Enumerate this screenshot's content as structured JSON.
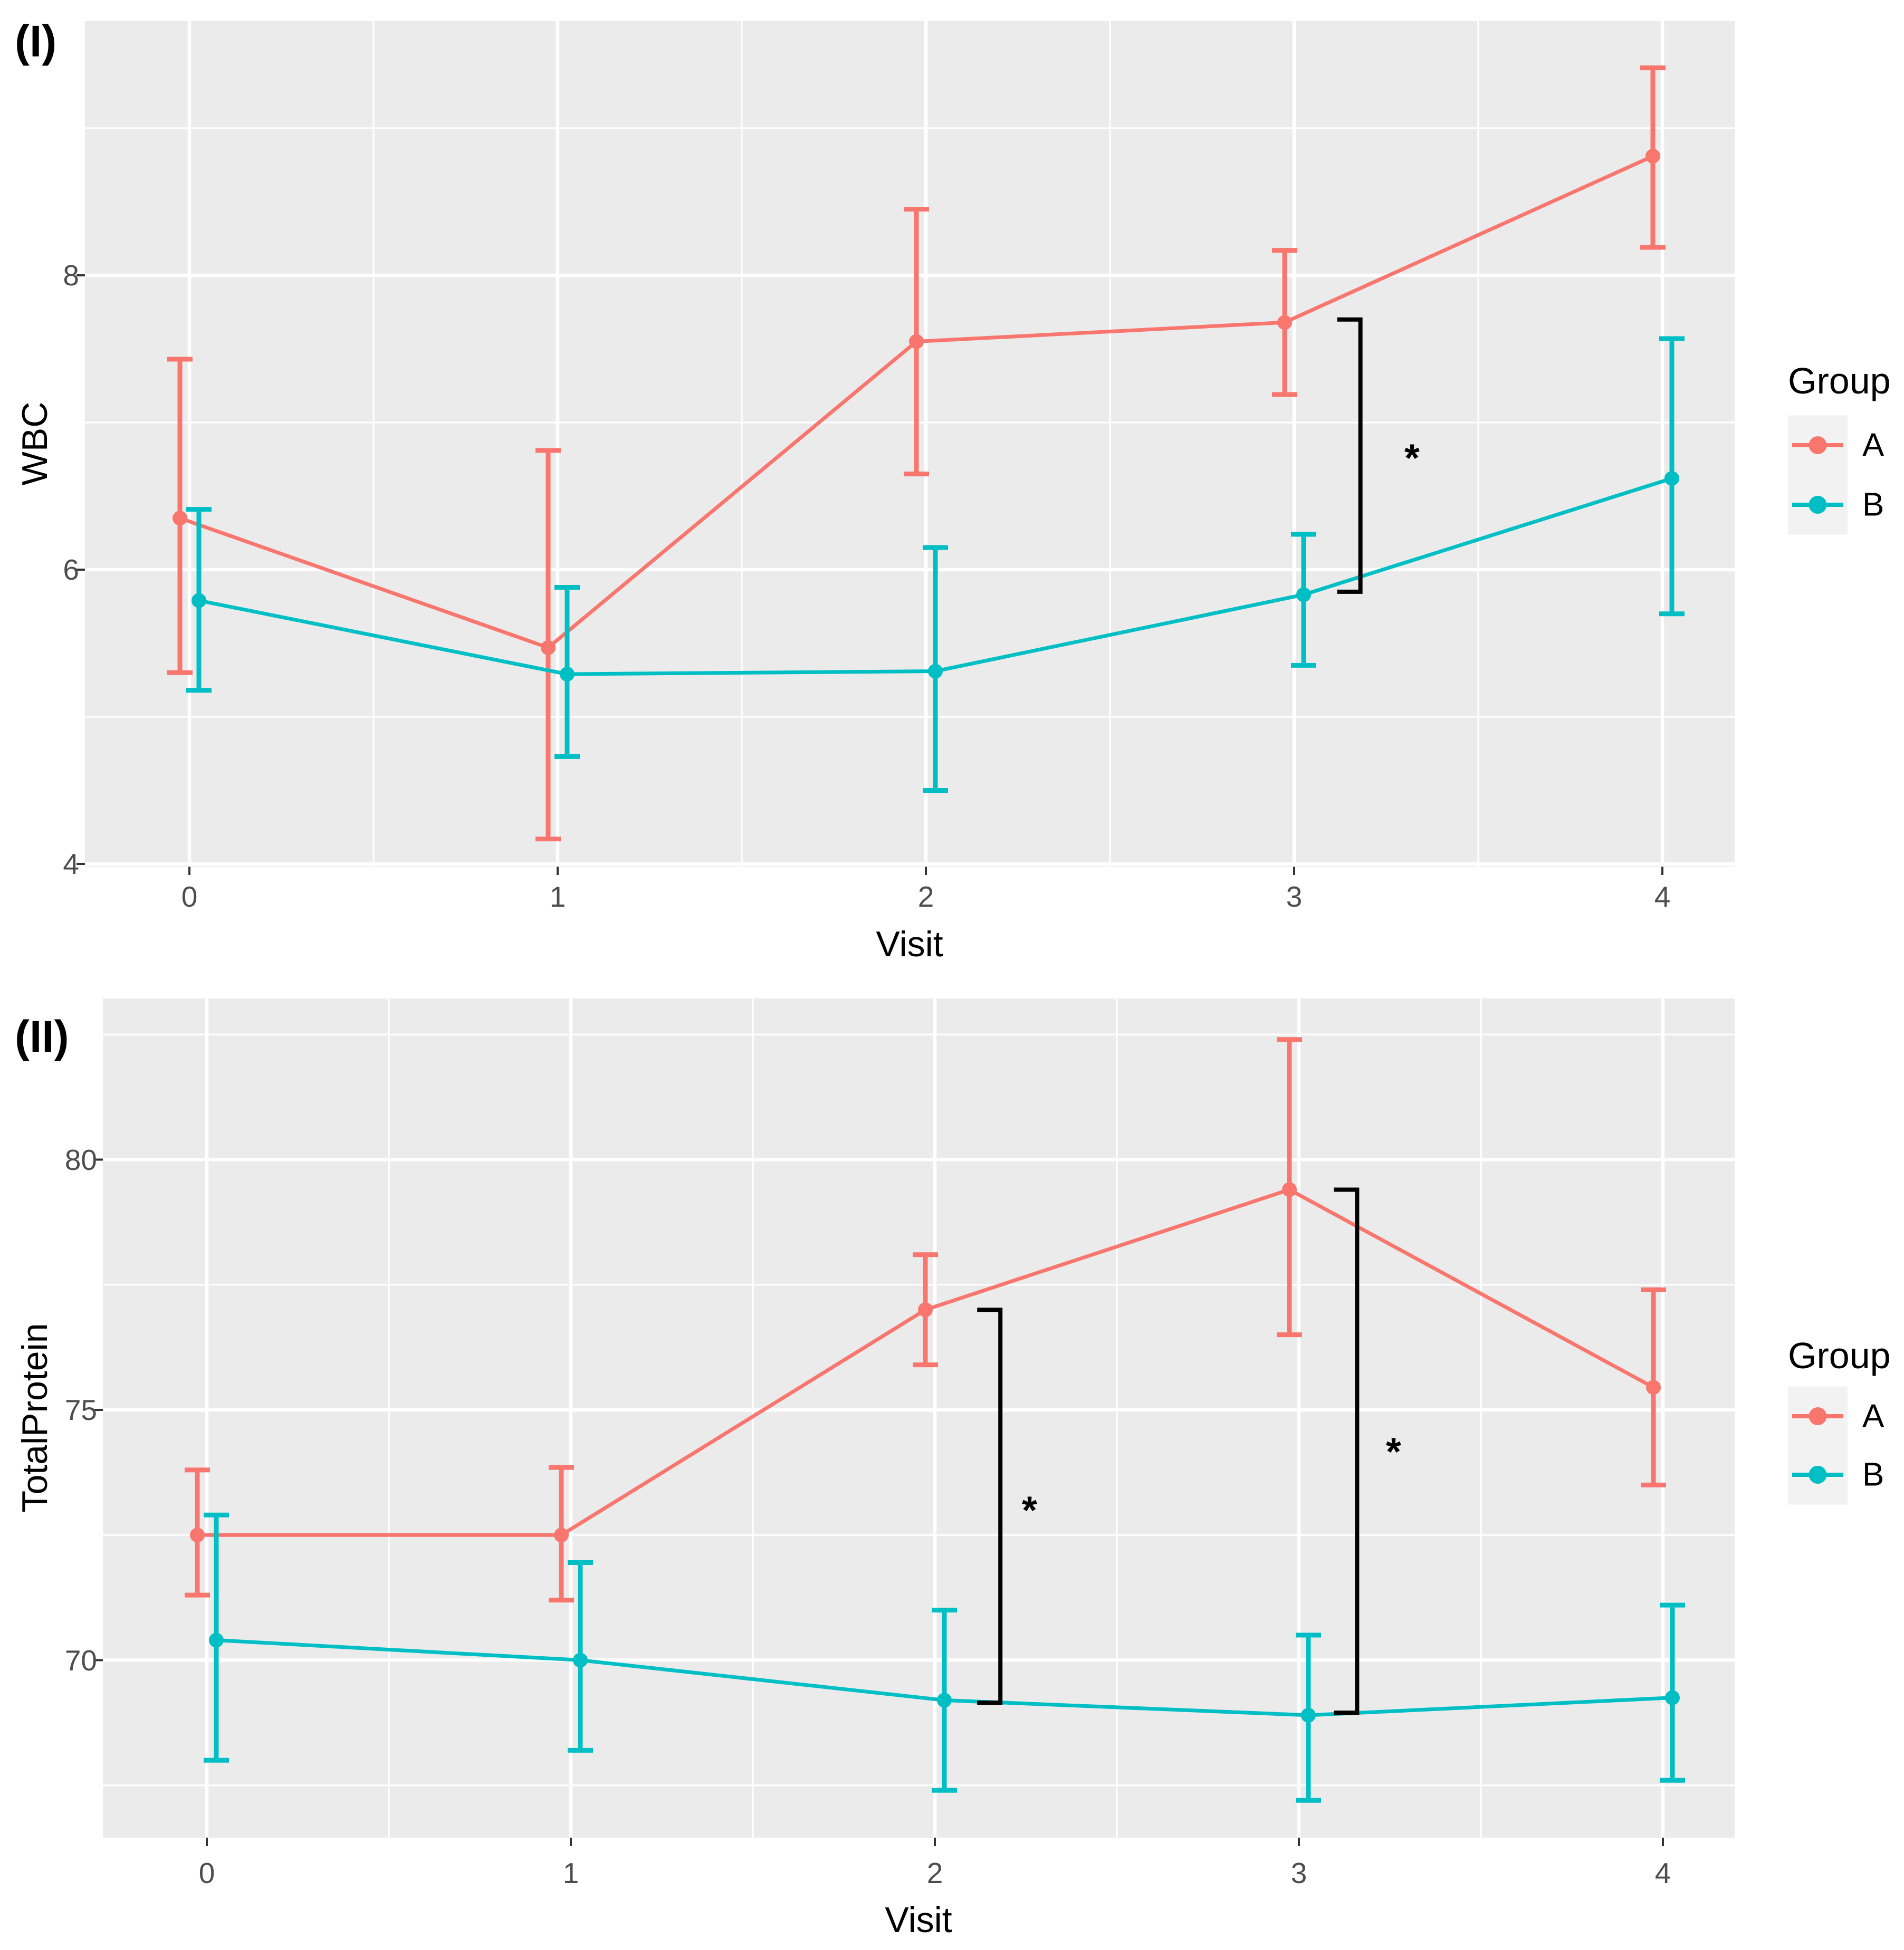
{
  "colors": {
    "series_a": "#F8766D",
    "series_b": "#00BFC4",
    "panel_background": "#EBEBEB",
    "gridline": "#FFFFFF",
    "tick_text": "#4D4D4D",
    "axis_tick": "#333333",
    "legend_key_background": "#F2F2F2",
    "annotation": "#000000"
  },
  "legend": {
    "title": "Group",
    "entries": [
      {
        "label": "A",
        "color": "#F8766D"
      },
      {
        "label": "B",
        "color": "#00BFC4"
      }
    ]
  },
  "chart_data": [
    {
      "type": "line",
      "tag": "(I)",
      "xlabel": "Visit",
      "ylabel": "WBC",
      "x": [
        0,
        1,
        2,
        3,
        4
      ],
      "x_ticklabels": [
        "0",
        "1",
        "2",
        "3",
        "4"
      ],
      "y_ticks": [
        8,
        6,
        4
      ],
      "y_minor": [
        9,
        7,
        5
      ],
      "xlim": [
        -0.29,
        4.2
      ],
      "ylim": [
        3.95,
        9.73
      ],
      "grid": true,
      "legend_position": "right",
      "series": [
        {
          "name": "A",
          "color": "#F8766D",
          "mean": [
            6.35,
            5.47,
            7.55,
            7.68,
            8.81
          ],
          "lower": [
            5.3,
            4.17,
            6.65,
            7.19,
            8.19
          ],
          "upper": [
            7.43,
            6.81,
            8.45,
            8.17,
            9.41
          ]
        },
        {
          "name": "B",
          "color": "#00BFC4",
          "mean": [
            5.79,
            5.29,
            5.31,
            5.83,
            6.62
          ],
          "lower": [
            5.18,
            4.73,
            4.5,
            5.35,
            5.7
          ],
          "upper": [
            6.41,
            5.88,
            6.15,
            6.24,
            7.57
          ]
        }
      ],
      "annotations": [
        {
          "type": "bracket",
          "x": 3.18,
          "top": 7.7,
          "bottom": 5.85,
          "label": "*",
          "label_x": 3.32,
          "label_y": 6.76
        }
      ]
    },
    {
      "type": "line",
      "tag": "(II)",
      "xlabel": "Visit",
      "ylabel": "TotalProtein",
      "x": [
        0,
        1,
        2,
        3,
        4
      ],
      "x_ticklabels": [
        "0",
        "1",
        "2",
        "3",
        "4"
      ],
      "y_ticks": [
        80,
        75,
        70
      ],
      "y_minor": [
        82.5,
        77.5,
        72.5,
        67.5
      ],
      "xlim": [
        -0.29,
        4.2
      ],
      "ylim": [
        66.45,
        83.1
      ],
      "grid": true,
      "legend_position": "right",
      "series": [
        {
          "name": "A",
          "color": "#F8766D",
          "mean": [
            72.5,
            72.5,
            77.0,
            79.4,
            75.45
          ],
          "lower": [
            71.3,
            71.2,
            75.9,
            76.5,
            73.5
          ],
          "upper": [
            73.8,
            73.85,
            78.1,
            82.4,
            77.4
          ]
        },
        {
          "name": "B",
          "color": "#00BFC4",
          "mean": [
            70.4,
            70.0,
            69.2,
            68.9,
            69.25
          ],
          "lower": [
            68.0,
            68.2,
            67.4,
            67.2,
            67.6
          ],
          "upper": [
            72.9,
            71.95,
            71.0,
            70.5,
            71.1
          ]
        }
      ],
      "annotations": [
        {
          "type": "bracket",
          "x": 2.18,
          "top": 77.0,
          "bottom": 69.15,
          "label": "*",
          "label_x": 2.26,
          "label_y": 73.0
        },
        {
          "type": "bracket",
          "x": 3.16,
          "top": 79.4,
          "bottom": 68.95,
          "label": "*",
          "label_x": 3.26,
          "label_y": 74.17
        }
      ]
    }
  ]
}
